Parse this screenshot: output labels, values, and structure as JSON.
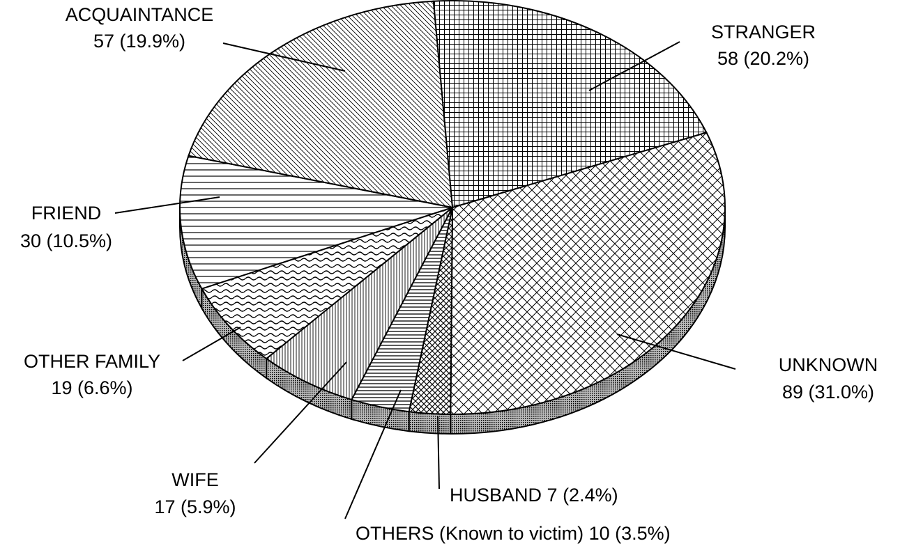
{
  "chart_data": {
    "type": "pie",
    "categories": [
      "STRANGER",
      "UNKNOWN",
      "HUSBAND",
      "OTHERS (Known to victim)",
      "WIFE",
      "OTHER FAMILY",
      "FRIEND",
      "ACQUAINTANCE"
    ],
    "values": [
      58,
      89,
      7,
      10,
      17,
      19,
      30,
      57
    ],
    "value_labels": [
      "58 (20.2%)",
      "89 (31.0%)",
      "7 (2.4%)",
      "10 (3.5%)",
      "17 (5.9%)",
      "19 (6.6%)",
      "30 (10.5%)",
      "57 (19.9%)"
    ],
    "color": "#000000"
  }
}
